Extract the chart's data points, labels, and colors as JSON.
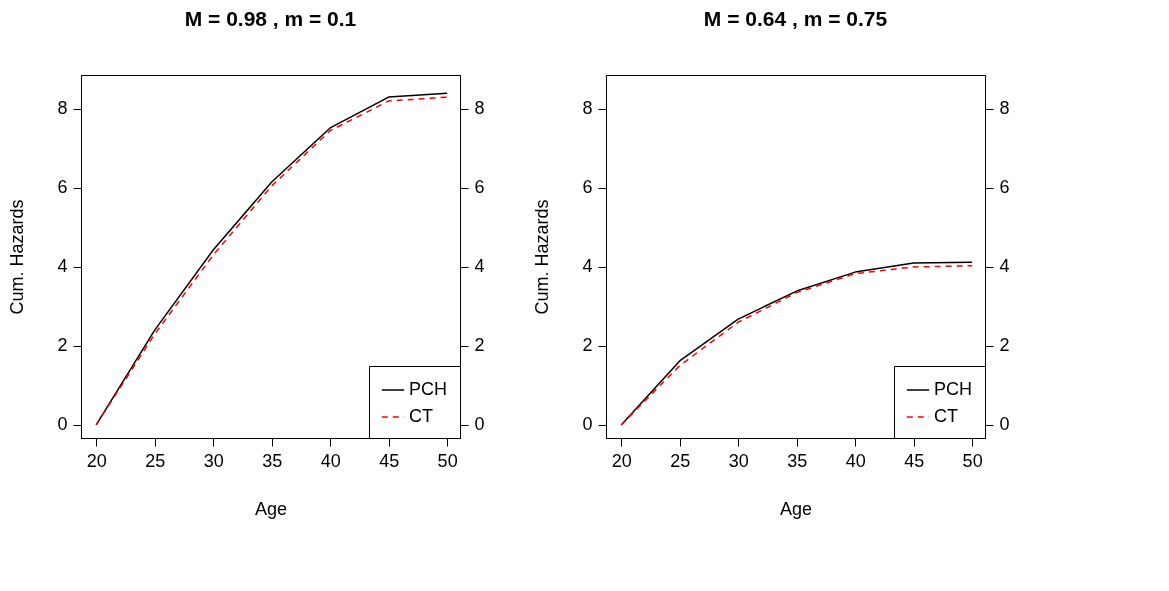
{
  "chart_data": [
    {
      "type": "line",
      "title": "M =  0.98 , m =  0.1",
      "xlabel": "Age",
      "ylabel": "Cum. Hazards",
      "x": [
        20,
        25,
        30,
        35,
        40,
        45,
        50
      ],
      "series": [
        {
          "name": "PCH",
          "color": "#000000",
          "line_style": "solid",
          "values": [
            0,
            2.4,
            4.43,
            6.15,
            7.52,
            8.3,
            8.4
          ]
        },
        {
          "name": "CT",
          "color": "#ff0000",
          "line_style": "dashed",
          "values": [
            0,
            2.3,
            4.3,
            6.05,
            7.45,
            8.2,
            8.3
          ]
        }
      ],
      "xlim": [
        18.7,
        51.1
      ],
      "xticks": [
        20,
        25,
        30,
        35,
        40,
        45,
        50
      ],
      "ylim": [
        -0.33,
        8.86
      ],
      "yticks": [
        0,
        2,
        4,
        6,
        8
      ],
      "y2lim": [
        -0.33,
        8.86
      ],
      "y2ticks": [
        0,
        2,
        4,
        6,
        8
      ],
      "legend": "bottom right",
      "grid": false
    },
    {
      "type": "line",
      "title": "M =  0.64 , m =  0.75",
      "xlabel": "Age",
      "ylabel": "Cum. Hazards",
      "x": [
        20,
        25,
        30,
        35,
        40,
        45,
        50
      ],
      "series": [
        {
          "name": "PCH",
          "color": "#000000",
          "line_style": "solid",
          "values": [
            0,
            1.62,
            2.68,
            3.39,
            3.87,
            4.1,
            4.12
          ]
        },
        {
          "name": "CT",
          "color": "#ff0000",
          "line_style": "dashed",
          "values": [
            0,
            1.5,
            2.6,
            3.35,
            3.83,
            4.0,
            4.03
          ]
        }
      ],
      "xlim": [
        18.7,
        51.1
      ],
      "xticks": [
        20,
        25,
        30,
        35,
        40,
        45,
        50
      ],
      "ylim": [
        -0.33,
        8.86
      ],
      "yticks": [
        0,
        2,
        4,
        6,
        8
      ],
      "y2lim": [
        -0.33,
        8.86
      ],
      "y2ticks": [
        0,
        2,
        4,
        6,
        8
      ],
      "legend": "bottom right",
      "grid": false
    }
  ]
}
